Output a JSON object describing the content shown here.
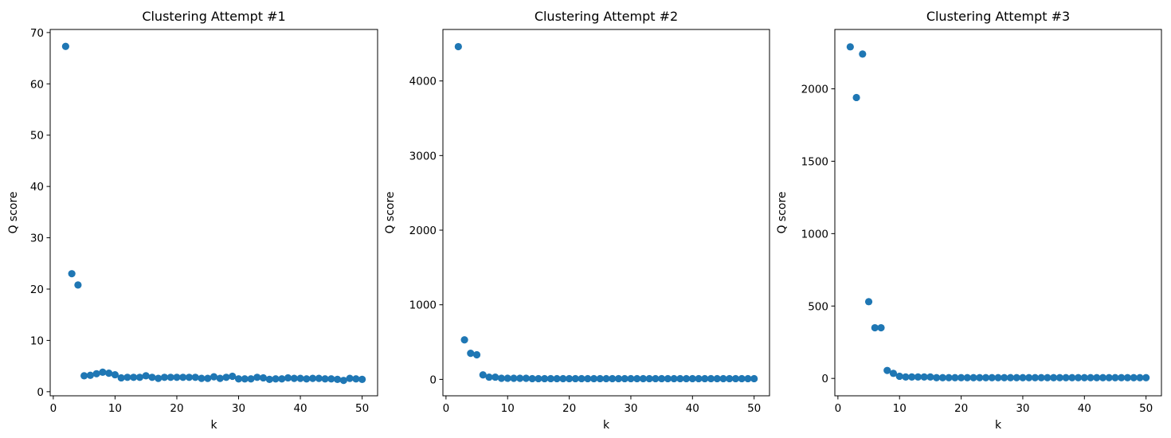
{
  "chart_data": [
    {
      "type": "scatter",
      "title": "Clustering Attempt #1",
      "xlabel": "k",
      "ylabel": "Q score",
      "xlim": [
        -0.5,
        52.5
      ],
      "ylim": [
        -0.8,
        70.6
      ],
      "xticks": [
        0,
        10,
        20,
        30,
        40,
        50
      ],
      "yticks": [
        0,
        10,
        20,
        30,
        40,
        50,
        60,
        70
      ],
      "grid": false,
      "color": "#1f77b4",
      "x": [
        2,
        3,
        4,
        5,
        6,
        7,
        8,
        9,
        10,
        11,
        12,
        13,
        14,
        15,
        16,
        17,
        18,
        19,
        20,
        21,
        22,
        23,
        24,
        25,
        26,
        27,
        28,
        29,
        30,
        31,
        32,
        33,
        34,
        35,
        36,
        37,
        38,
        39,
        40,
        41,
        42,
        43,
        44,
        45,
        46,
        47,
        48,
        49,
        50
      ],
      "y": [
        67.3,
        23.0,
        20.8,
        3.1,
        3.2,
        3.5,
        3.8,
        3.6,
        3.3,
        2.7,
        2.8,
        2.8,
        2.8,
        3.1,
        2.8,
        2.6,
        2.8,
        2.8,
        2.8,
        2.8,
        2.8,
        2.8,
        2.6,
        2.6,
        2.9,
        2.6,
        2.8,
        3.0,
        2.5,
        2.5,
        2.5,
        2.8,
        2.7,
        2.4,
        2.5,
        2.5,
        2.7,
        2.6,
        2.6,
        2.5,
        2.6,
        2.6,
        2.5,
        2.5,
        2.4,
        2.2,
        2.6,
        2.5,
        2.4
      ]
    },
    {
      "type": "scatter",
      "title": "Clustering Attempt #2",
      "xlabel": "k",
      "ylabel": "Q score",
      "xlim": [
        -0.5,
        52.5
      ],
      "ylim": [
        -220,
        4690
      ],
      "xticks": [
        0,
        10,
        20,
        30,
        40,
        50
      ],
      "yticks": [
        0,
        1000,
        2000,
        3000,
        4000
      ],
      "grid": false,
      "color": "#1f77b4",
      "x": [
        2,
        3,
        4,
        5,
        6,
        7,
        8,
        9,
        10,
        11,
        12,
        13,
        14,
        15,
        16,
        17,
        18,
        19,
        20,
        21,
        22,
        23,
        24,
        25,
        26,
        27,
        28,
        29,
        30,
        31,
        32,
        33,
        34,
        35,
        36,
        37,
        38,
        39,
        40,
        41,
        42,
        43,
        44,
        45,
        46,
        47,
        48,
        49,
        50
      ],
      "y": [
        4460,
        530,
        350,
        330,
        60,
        30,
        30,
        15,
        15,
        15,
        15,
        15,
        10,
        10,
        10,
        10,
        10,
        10,
        10,
        10,
        10,
        10,
        10,
        10,
        10,
        10,
        10,
        10,
        10,
        10,
        10,
        10,
        10,
        10,
        10,
        10,
        10,
        10,
        10,
        10,
        10,
        10,
        10,
        10,
        10,
        10,
        10,
        10,
        10
      ]
    },
    {
      "type": "scatter",
      "title": "Clustering Attempt #3",
      "xlabel": "k",
      "ylabel": "Q score",
      "xlim": [
        -0.5,
        52.5
      ],
      "ylim": [
        -120,
        2410
      ],
      "xticks": [
        0,
        10,
        20,
        30,
        40,
        50
      ],
      "yticks": [
        0,
        500,
        1000,
        1500,
        2000
      ],
      "grid": false,
      "color": "#1f77b4",
      "x": [
        2,
        3,
        4,
        5,
        6,
        7,
        8,
        9,
        10,
        11,
        12,
        13,
        14,
        15,
        16,
        17,
        18,
        19,
        20,
        21,
        22,
        23,
        24,
        25,
        26,
        27,
        28,
        29,
        30,
        31,
        32,
        33,
        34,
        35,
        36,
        37,
        38,
        39,
        40,
        41,
        42,
        43,
        44,
        45,
        46,
        47,
        48,
        49,
        50
      ],
      "y": [
        2290,
        1940,
        2240,
        530,
        350,
        350,
        55,
        35,
        15,
        10,
        10,
        10,
        10,
        10,
        5,
        5,
        5,
        5,
        5,
        5,
        5,
        5,
        5,
        5,
        5,
        5,
        5,
        5,
        5,
        5,
        5,
        5,
        5,
        5,
        5,
        5,
        5,
        5,
        5,
        5,
        5,
        5,
        5,
        5,
        5,
        5,
        5,
        5,
        5
      ]
    }
  ]
}
